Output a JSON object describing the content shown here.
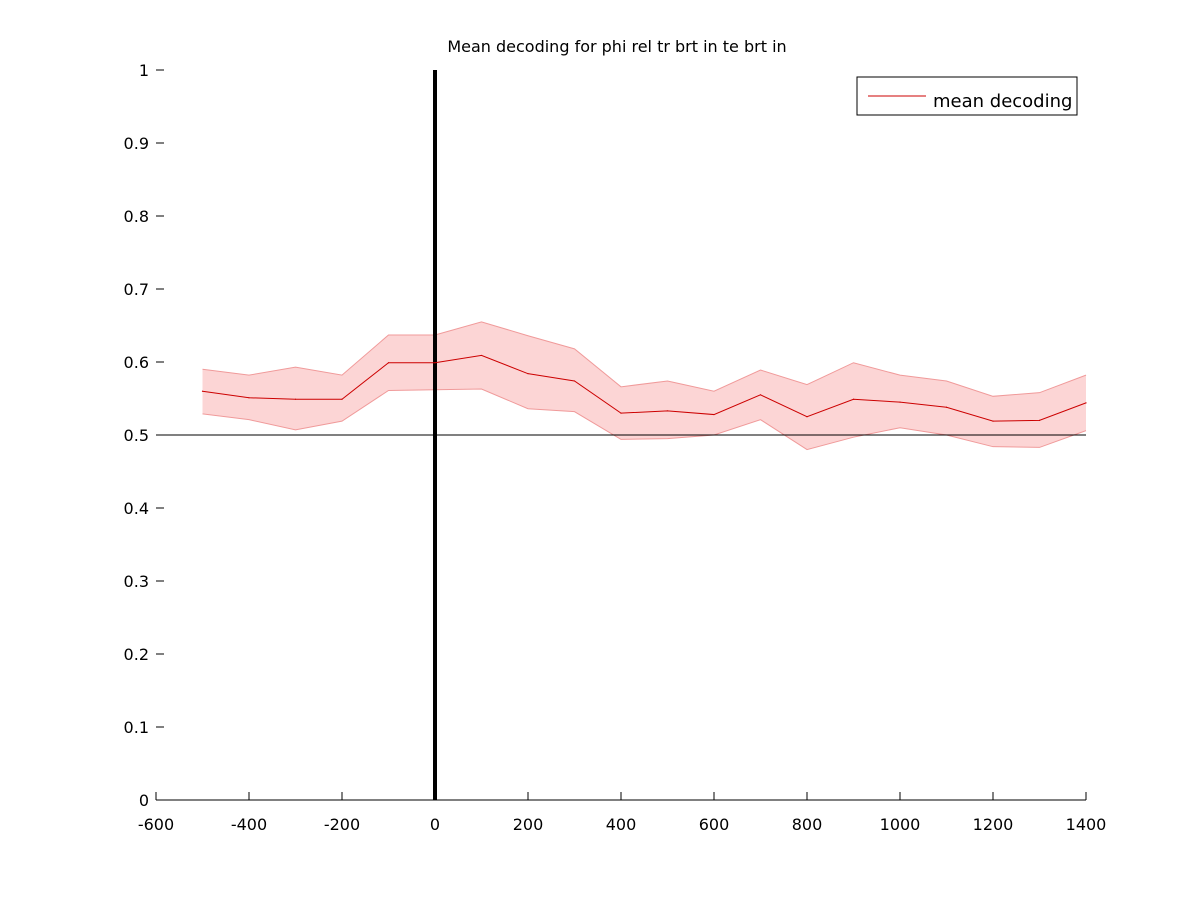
{
  "chart_data": {
    "type": "line",
    "title": "Mean decoding for phi rel tr brt in te brt in",
    "xlabel": "",
    "ylabel": "",
    "xlim": [
      -600,
      1400
    ],
    "ylim": [
      0,
      1
    ],
    "x_ticks": [
      "-600",
      "-400",
      "-200",
      "0",
      "200",
      "400",
      "600",
      "800",
      "1000",
      "1200",
      "1400"
    ],
    "x_tick_values": [
      -600,
      -400,
      -200,
      0,
      200,
      400,
      600,
      800,
      1000,
      1200,
      1400
    ],
    "y_ticks": [
      "0",
      "0.1",
      "0.2",
      "0.3",
      "0.4",
      "0.5",
      "0.6",
      "0.7",
      "0.8",
      "0.9",
      "1"
    ],
    "y_tick_values": [
      0,
      0.1,
      0.2,
      0.3,
      0.4,
      0.5,
      0.6,
      0.7,
      0.8,
      0.9,
      1
    ],
    "grid": false,
    "legend_position": "top-right",
    "series": [
      {
        "name": "mean decoding",
        "color": "#cc0000",
        "band_color": "#fcd5d5",
        "band_edge_color": "#f09a9a",
        "x": [
          -500,
          -400,
          -300,
          -200,
          -100,
          0,
          100,
          200,
          300,
          400,
          500,
          600,
          700,
          800,
          900,
          1000,
          1100,
          1200,
          1300,
          1400
        ],
        "values": [
          0.56,
          0.551,
          0.549,
          0.549,
          0.599,
          0.599,
          0.609,
          0.584,
          0.574,
          0.53,
          0.533,
          0.528,
          0.555,
          0.525,
          0.549,
          0.545,
          0.538,
          0.519,
          0.52,
          0.544
        ],
        "upper": [
          0.59,
          0.582,
          0.593,
          0.582,
          0.637,
          0.637,
          0.655,
          0.636,
          0.618,
          0.566,
          0.574,
          0.56,
          0.589,
          0.569,
          0.599,
          0.582,
          0.574,
          0.553,
          0.558,
          0.582
        ],
        "lower": [
          0.529,
          0.521,
          0.507,
          0.519,
          0.561,
          0.562,
          0.563,
          0.536,
          0.532,
          0.494,
          0.495,
          0.5,
          0.521,
          0.48,
          0.497,
          0.51,
          0.5,
          0.484,
          0.483,
          0.506
        ]
      }
    ],
    "reference_lines": {
      "horizontal_y": 0.5,
      "vertical_x": 0
    }
  }
}
